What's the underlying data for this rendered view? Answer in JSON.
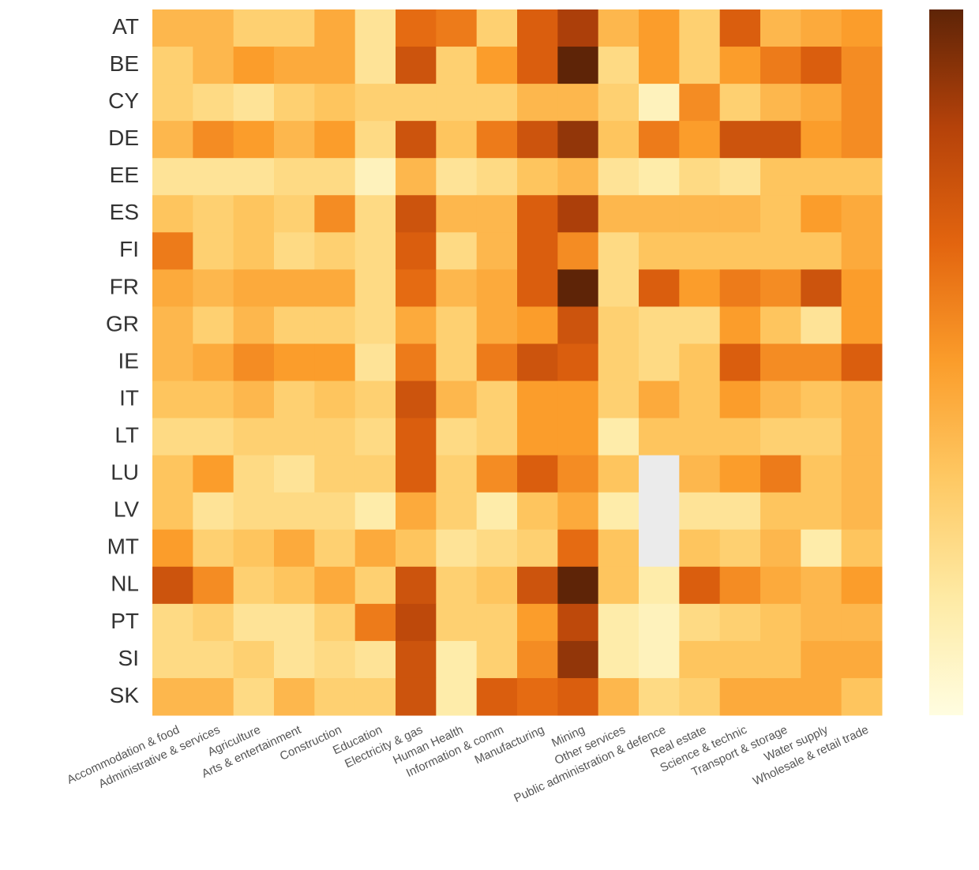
{
  "chart_data": {
    "type": "heatmap",
    "rows": [
      "AT",
      "BE",
      "CY",
      "DE",
      "EE",
      "ES",
      "FI",
      "FR",
      "GR",
      "IE",
      "IT",
      "LT",
      "LU",
      "LV",
      "MT",
      "NL",
      "PT",
      "SI",
      "SK"
    ],
    "columns": [
      "Accommodation & food",
      "Administrative & services",
      "Agriculture",
      "Arts & entertainment",
      "Construction",
      "Education",
      "Electricity & gas",
      "Human Health",
      "Information & comm",
      "Manufacturing",
      "Mining",
      "Other services",
      "Public administration & defence",
      "Real estate",
      "Science & technic",
      "Transport & storage",
      "Water supply",
      "Wholesale & retail trade"
    ],
    "values": [
      [
        4,
        4,
        3,
        3,
        4.5,
        2,
        6.5,
        6,
        3,
        7,
        8.5,
        4,
        5,
        3,
        7,
        4,
        4.5,
        5
      ],
      [
        3,
        4,
        5,
        4.5,
        4.5,
        2,
        7.5,
        3,
        5,
        7,
        10,
        2.5,
        5,
        3,
        5,
        6,
        7,
        5.5
      ],
      [
        3,
        2.5,
        2,
        3,
        3.5,
        3,
        3,
        3,
        3,
        4,
        4,
        3,
        1,
        5.5,
        3,
        4,
        4.5,
        5.5
      ],
      [
        4,
        5.5,
        5,
        4,
        5,
        2.5,
        7.5,
        3.5,
        6,
        7.5,
        9,
        3.5,
        6,
        5,
        7.5,
        7.5,
        5,
        5.5
      ],
      [
        2,
        2,
        2,
        2.5,
        2.5,
        1,
        4,
        2,
        2.5,
        3.5,
        4,
        2,
        1.5,
        2.5,
        2,
        3.5,
        3.5,
        3.5
      ],
      [
        3.5,
        3,
        3.5,
        3,
        5.5,
        2.5,
        7.5,
        4,
        4,
        7,
        8.5,
        4,
        4,
        4,
        4,
        3.5,
        5,
        4.5
      ],
      [
        6,
        3,
        3.5,
        2.5,
        3,
        2.5,
        7,
        2.5,
        4,
        7,
        5.5,
        2.5,
        3.5,
        3.5,
        3.5,
        3.5,
        3.5,
        4.5
      ],
      [
        4.5,
        4,
        4.5,
        4.5,
        4.5,
        2.5,
        6.5,
        4,
        4.5,
        7,
        10,
        2.5,
        7,
        5,
        6,
        5.5,
        7.5,
        5
      ],
      [
        4,
        3,
        4,
        3,
        3,
        2.5,
        4.5,
        3,
        4.5,
        5,
        7.5,
        3,
        2.5,
        2.5,
        5,
        3.5,
        2,
        5
      ],
      [
        4,
        4.5,
        5.5,
        5,
        5,
        2,
        6,
        3,
        6,
        7.5,
        7,
        3,
        2.5,
        3.5,
        7,
        5.5,
        5.5,
        7
      ],
      [
        3.5,
        3.5,
        4,
        3,
        3.5,
        3,
        7.5,
        4,
        3,
        5,
        5,
        3,
        4.5,
        3.5,
        5,
        4,
        3.5,
        4
      ],
      [
        2.5,
        2.5,
        3,
        3,
        3,
        2.5,
        7,
        2.5,
        3,
        5,
        5,
        1.5,
        3.5,
        3.5,
        3.5,
        3,
        3,
        4
      ],
      [
        3.5,
        5,
        2.5,
        2,
        3,
        3,
        7,
        3,
        5.5,
        7,
        5.5,
        3.5,
        null,
        4,
        5,
        6,
        3.5,
        4
      ],
      [
        3.5,
        2,
        2.5,
        2.5,
        2.5,
        1.5,
        4.5,
        3,
        1.5,
        3.5,
        4.5,
        1.5,
        null,
        2,
        2,
        3.5,
        3.5,
        4
      ],
      [
        5,
        3,
        3.5,
        4.5,
        3,
        4.5,
        3.5,
        2,
        2.5,
        3,
        6.5,
        3.5,
        null,
        3.5,
        3,
        4,
        1.5,
        3.5
      ],
      [
        7.5,
        5.5,
        3,
        3.5,
        4.5,
        3,
        7.5,
        3,
        3.5,
        7.5,
        10,
        3.5,
        1.5,
        7,
        5.5,
        4.5,
        4,
        5
      ],
      [
        2.5,
        3,
        2,
        2,
        3,
        6,
        8,
        3,
        3,
        5,
        8,
        1.5,
        1,
        2.5,
        3,
        3.5,
        4,
        4
      ],
      [
        2.5,
        2.5,
        3,
        2,
        2.5,
        2,
        7.5,
        1.5,
        3,
        5.5,
        9,
        1.5,
        1,
        3.5,
        3.5,
        3.5,
        4.5,
        4.5
      ],
      [
        4,
        4,
        2.5,
        4,
        3,
        3,
        7.5,
        1.5,
        7,
        6.5,
        7,
        4,
        2.5,
        3,
        4.5,
        4.5,
        4.5,
        3.5
      ]
    ],
    "zlim": [
      0,
      10
    ],
    "colorscale": [
      "#fffde0",
      "#feeaa4",
      "#fec964",
      "#fb9d2b",
      "#e3650f",
      "#b5420a",
      "#5e2407"
    ],
    "missing_color": "#ebebeb"
  }
}
